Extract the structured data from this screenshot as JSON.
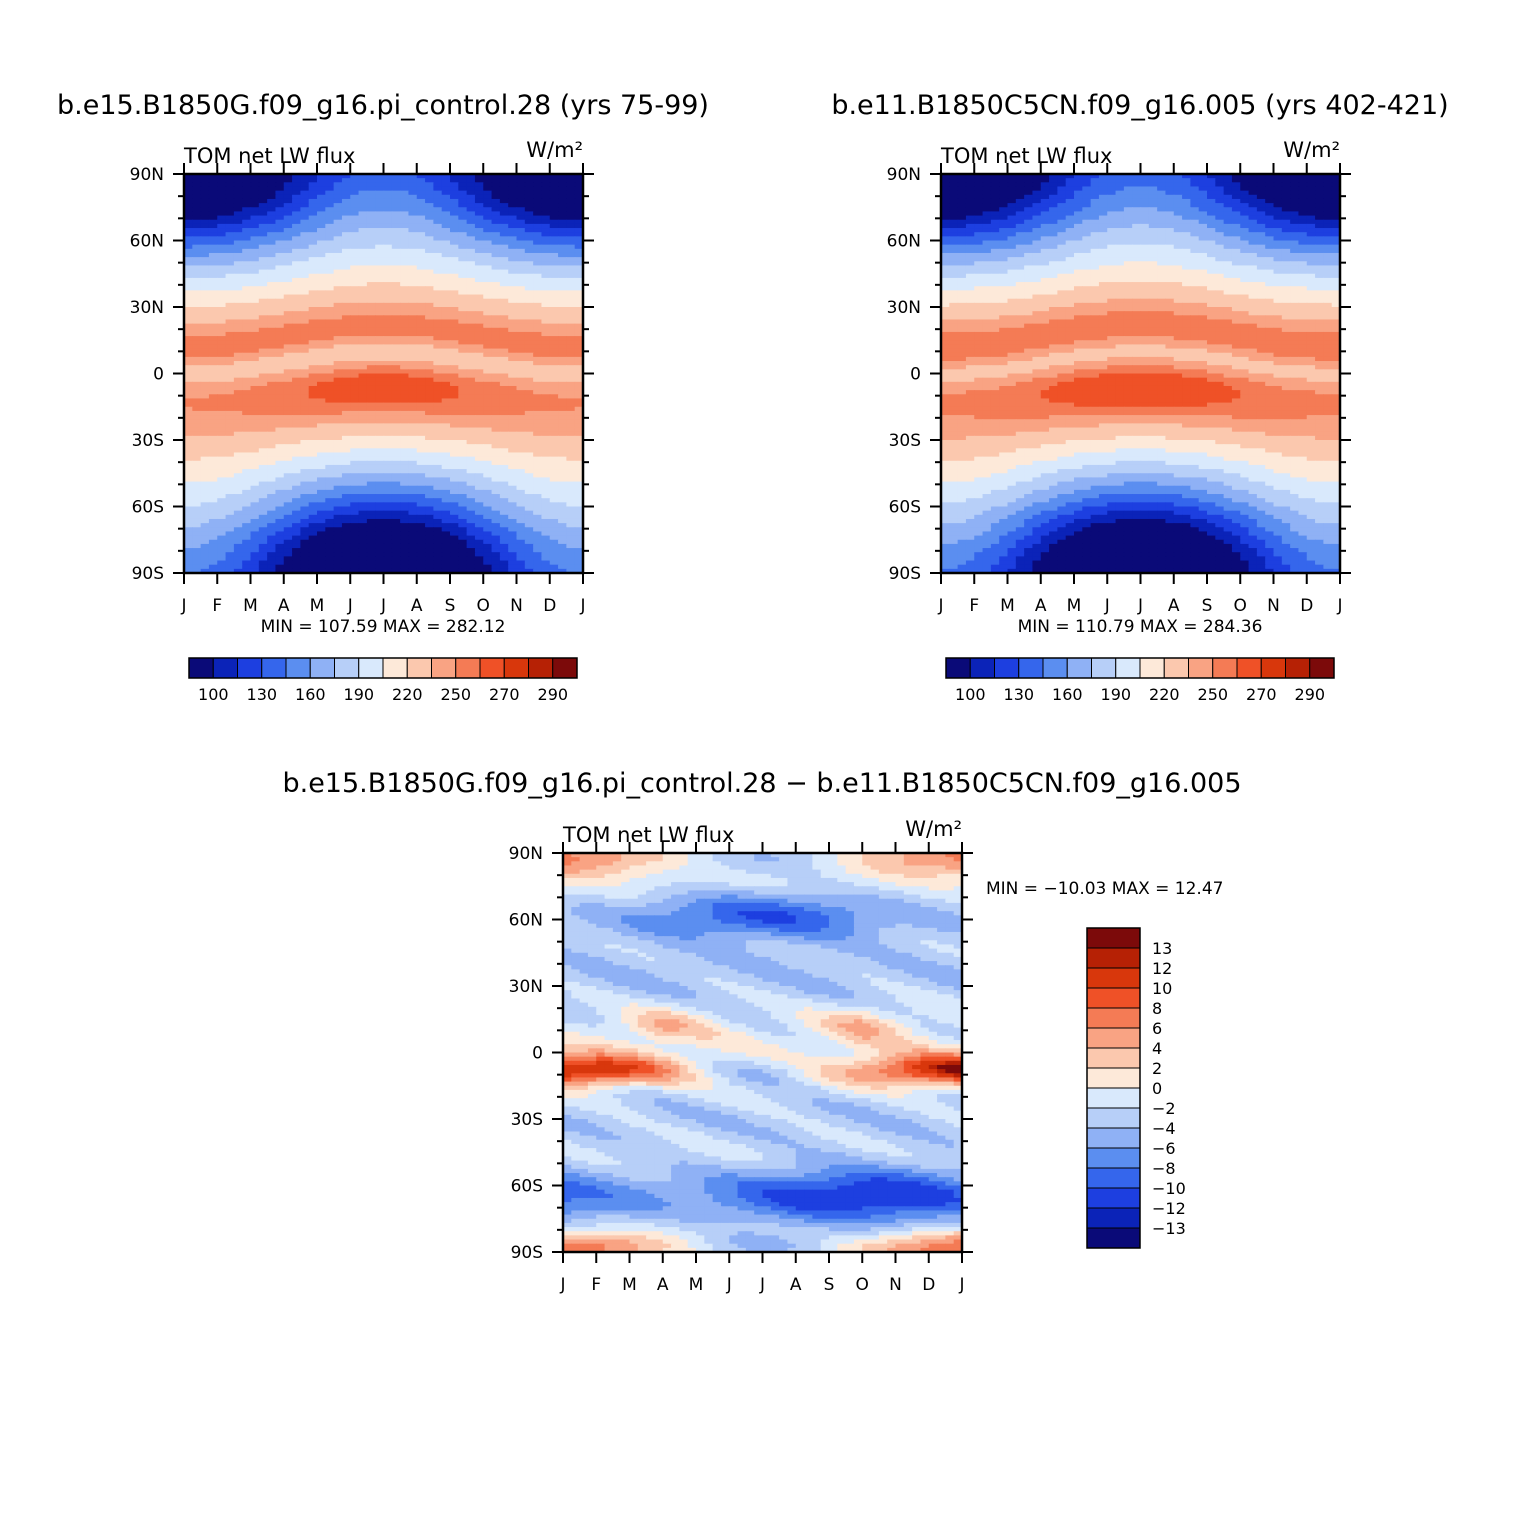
{
  "panels": [
    {
      "id": "left",
      "title": "b.e15.B1850G.f09_g16.pi_control.28 (yrs 75-99)",
      "left_label": "TOM net LW flux",
      "unit": "W/m²",
      "min_label": "MIN =",
      "min_value": "107.59",
      "max_label": "MAX =",
      "max_value": "282.12"
    },
    {
      "id": "right",
      "title": "b.e11.B1850C5CN.f09_g16.005 (yrs 402-421)",
      "left_label": "TOM net LW flux",
      "unit": "W/m²",
      "min_label": "MIN =",
      "min_value": "110.79",
      "max_label": "MAX =",
      "max_value": "284.36"
    },
    {
      "id": "diff",
      "title": "b.e15.B1850G.f09_g16.pi_control.28 − b.e11.B1850C5CN.f09_g16.005",
      "left_label": "TOM net LW flux",
      "unit": "W/m²",
      "min_label": "MIN =",
      "min_value": "−10.03",
      "max_label": "MAX =",
      "max_value": "12.47"
    }
  ],
  "colors": {
    "main_scale": [
      "#0a0a78",
      "#0b23b8",
      "#1d3fe0",
      "#3566ec",
      "#5b8ef0",
      "#8fb1f5",
      "#b7cff8",
      "#d9e9fc",
      "#fde9d9",
      "#fbc8ae",
      "#f9a383",
      "#f47b55",
      "#ef5127",
      "#d8370c",
      "#b62105",
      "#7c0a0a"
    ],
    "diff_scale": [
      "#0a0a78",
      "#0b23b8",
      "#1d3fe0",
      "#3566ec",
      "#5b8ef0",
      "#8fb1f5",
      "#b7cff8",
      "#d9e9fc",
      "#fde9d9",
      "#fbc8ae",
      "#f9a383",
      "#f47b55",
      "#ef5127",
      "#d8370c",
      "#b62105",
      "#7c0a0a"
    ]
  },
  "chart_data": [
    {
      "type": "heatmap",
      "title": "b.e15.B1850G.f09_g16.pi_control.28 (yrs 75-99)",
      "subtitle": "TOM net LW flux",
      "units": "W/m²",
      "x": [
        "J",
        "F",
        "M",
        "A",
        "M",
        "J",
        "J",
        "A",
        "S",
        "O",
        "N",
        "D",
        "J"
      ],
      "y_ticks": [
        "90N",
        "60N",
        "30N",
        "0",
        "30S",
        "60S",
        "90S"
      ],
      "min": 107.59,
      "max": 282.12,
      "colorbar_labels": [
        "100",
        "130",
        "160",
        "190",
        "220",
        "250",
        "270",
        "290"
      ],
      "contour_levels": [
        100,
        110,
        120,
        130,
        140,
        150,
        160,
        170,
        180,
        190,
        200,
        210,
        220,
        230,
        240,
        250,
        260,
        270,
        280,
        290
      ]
    },
    {
      "type": "heatmap",
      "title": "b.e11.B1850C5CN.f09_g16.005 (yrs 402-421)",
      "subtitle": "TOM net LW flux",
      "units": "W/m²",
      "x": [
        "J",
        "F",
        "M",
        "A",
        "M",
        "J",
        "J",
        "A",
        "S",
        "O",
        "N",
        "D",
        "J"
      ],
      "y_ticks": [
        "90N",
        "60N",
        "30N",
        "0",
        "30S",
        "60S",
        "90S"
      ],
      "min": 110.79,
      "max": 284.36,
      "colorbar_labels": [
        "100",
        "130",
        "160",
        "190",
        "220",
        "250",
        "270",
        "290"
      ],
      "contour_levels": [
        100,
        110,
        120,
        130,
        140,
        150,
        160,
        170,
        180,
        190,
        200,
        210,
        220,
        230,
        240,
        250,
        260,
        270,
        280,
        290
      ]
    },
    {
      "type": "heatmap",
      "title": "b.e15.B1850G.f09_g16.pi_control.28 − b.e11.B1850C5CN.f09_g16.005",
      "subtitle": "TOM net LW flux",
      "units": "W/m²",
      "x": [
        "J",
        "F",
        "M",
        "A",
        "M",
        "J",
        "J",
        "A",
        "S",
        "O",
        "N",
        "D",
        "J"
      ],
      "y_ticks": [
        "90N",
        "60N",
        "30N",
        "0",
        "30S",
        "60S",
        "90S"
      ],
      "min": -10.03,
      "max": 12.47,
      "colorbar_labels": [
        "13",
        "12",
        "10",
        "8",
        "6",
        "4",
        "2",
        "0",
        "−2",
        "−4",
        "−6",
        "−8",
        "−10",
        "−12",
        "−13"
      ]
    }
  ]
}
